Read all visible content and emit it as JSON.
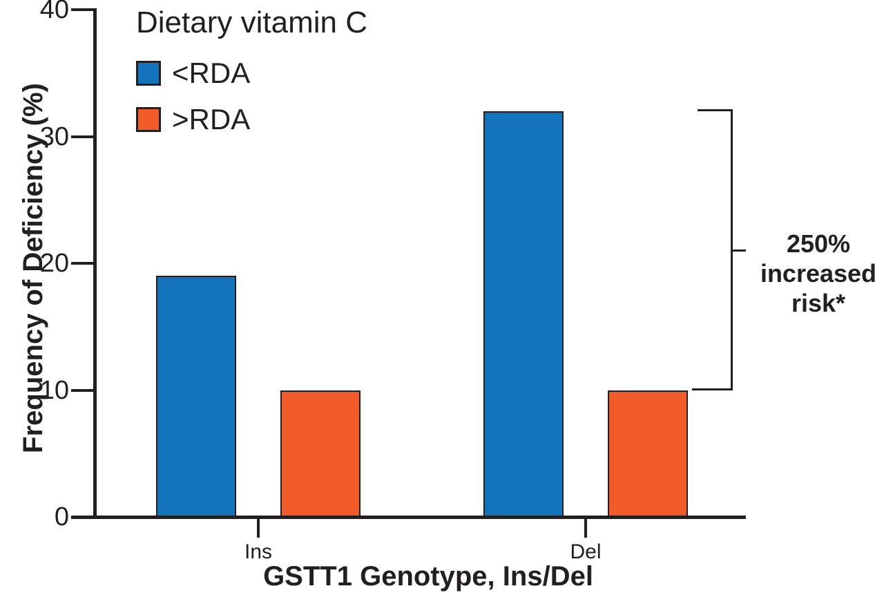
{
  "figure": {
    "background": "#ffffff",
    "ink_color": "#231f20"
  },
  "chart_data": {
    "type": "bar",
    "title": "",
    "categories": [
      "Ins",
      "Del"
    ],
    "series": [
      {
        "name": "<RDA",
        "color": "#1374bc",
        "values": [
          19,
          32
        ]
      },
      {
        "name": ">RDA",
        "color": "#f15a29",
        "values": [
          10,
          10
        ]
      }
    ],
    "xlabel": "GSTT1 Genotype, Ins/Del",
    "ylabel": "Frequency of Deficiency (%)",
    "ylim": [
      0,
      40
    ],
    "yticks": [
      0,
      10,
      20,
      30,
      40
    ],
    "grid": false,
    "bar_border_color": "#231f20",
    "legend": {
      "title": "Dietary vitamin C",
      "position": "top-left-inside"
    }
  },
  "annotation": {
    "text": "250% increased risk*",
    "lines": [
      "250%",
      "increased",
      "risk*"
    ],
    "category": "Del",
    "from_series": "<RDA",
    "to_series": ">RDA"
  }
}
